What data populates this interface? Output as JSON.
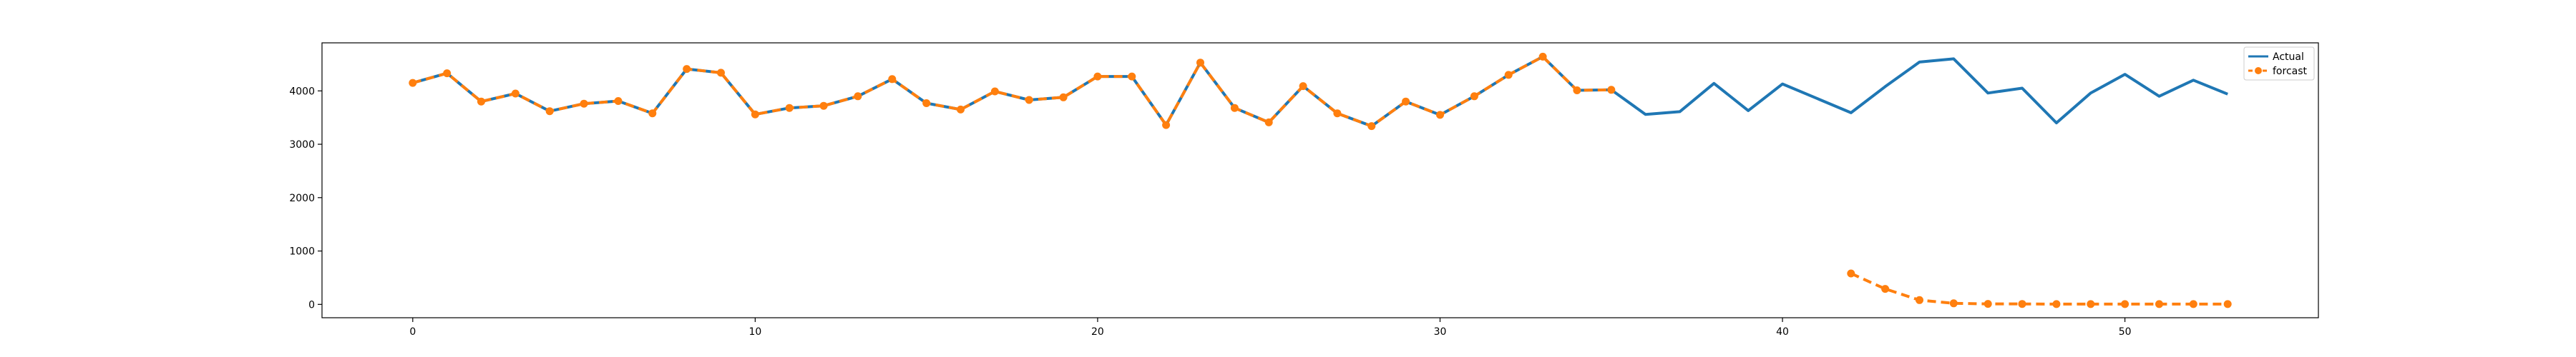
{
  "chart_data": {
    "type": "line",
    "title": "",
    "xlabel": "",
    "ylabel": "",
    "xlim": [
      -2.65,
      55.65
    ],
    "ylim": [
      -250,
      4900
    ],
    "xticks": [
      0,
      10,
      20,
      30,
      40,
      50
    ],
    "yticks": [
      0,
      1000,
      2000,
      3000,
      4000
    ],
    "grid": false,
    "legend_position": "top-right",
    "series": [
      {
        "name": "Actual",
        "color": "#1f77b4",
        "style": "solid",
        "marker": "none",
        "x": [
          0,
          1,
          2,
          3,
          4,
          5,
          6,
          7,
          8,
          9,
          10,
          11,
          12,
          13,
          14,
          15,
          16,
          17,
          18,
          19,
          20,
          21,
          22,
          23,
          24,
          25,
          26,
          27,
          28,
          29,
          30,
          31,
          32,
          33,
          34,
          35,
          36,
          37,
          38,
          39,
          40,
          41,
          42,
          43,
          44,
          45,
          46,
          47,
          48,
          49,
          50,
          51,
          52,
          53
        ],
        "values": [
          4150,
          4330,
          3800,
          3950,
          3620,
          3760,
          3810,
          3580,
          4410,
          4340,
          3560,
          3680,
          3720,
          3900,
          4220,
          3770,
          3650,
          3990,
          3830,
          3880,
          4270,
          4270,
          3360,
          4530,
          3680,
          3410,
          4090,
          3580,
          3340,
          3800,
          3550,
          3900,
          4300,
          4640,
          4010,
          4020,
          3560,
          3610,
          4140,
          3630,
          4130,
          3860,
          3590,
          4080,
          4540,
          4600,
          3960,
          4050,
          3400,
          3960,
          4310,
          3900,
          4200,
          3940
        ]
      },
      {
        "name": "forcast",
        "color": "#ff7f0e",
        "style": "dashed",
        "marker": "circle",
        "segments": [
          {
            "x": [
              0,
              1,
              2,
              3,
              4,
              5,
              6,
              7,
              8,
              9,
              10,
              11,
              12,
              13,
              14,
              15,
              16,
              17,
              18,
              19,
              20,
              21,
              22,
              23,
              24,
              25,
              26,
              27,
              28,
              29,
              30,
              31,
              32,
              33,
              34,
              35
            ],
            "values": [
              4150,
              4330,
              3800,
              3950,
              3620,
              3760,
              3810,
              3580,
              4410,
              4340,
              3560,
              3680,
              3720,
              3900,
              4220,
              3770,
              3650,
              3990,
              3830,
              3880,
              4270,
              4270,
              3360,
              4530,
              3680,
              3410,
              4090,
              3580,
              3340,
              3800,
              3550,
              3900,
              4300,
              4640,
              4010,
              4020
            ]
          },
          {
            "x": [
              42,
              43,
              44,
              45,
              46,
              47,
              48,
              49,
              50,
              51,
              52,
              53
            ],
            "values": [
              580,
              290,
              80,
              20,
              10,
              8,
              5,
              5,
              5,
              5,
              5,
              5
            ]
          }
        ]
      }
    ]
  }
}
